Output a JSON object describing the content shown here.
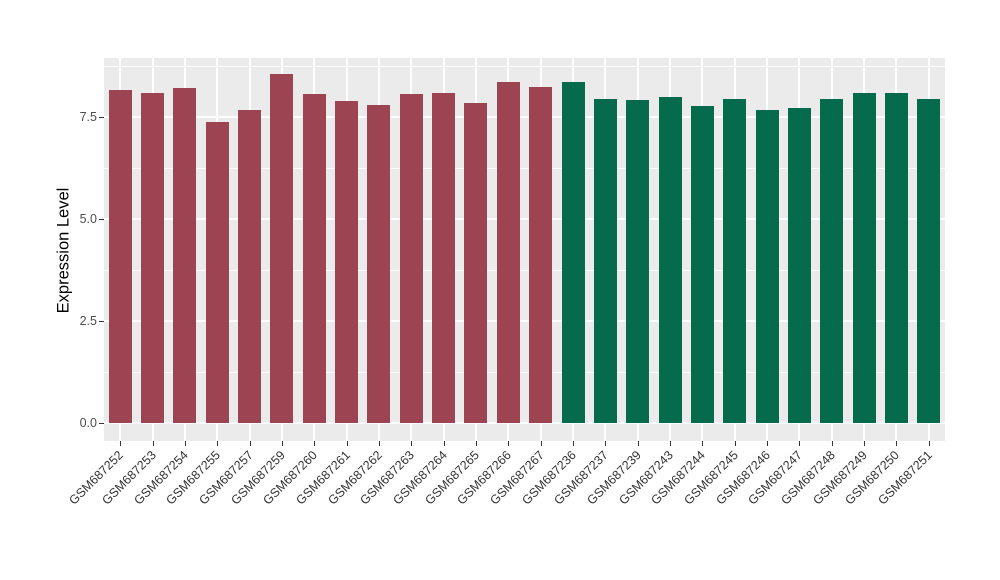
{
  "figure": {
    "background_color": "#FFFFFF",
    "panel_background_color": "#EBEBEB",
    "grid_color": "#FFFFFF"
  },
  "chart_data": {
    "type": "bar",
    "title": "",
    "xlabel": "",
    "ylabel": "Expression Level",
    "ylim": [
      -0.44,
      8.95
    ],
    "grid": true,
    "legend_position": "none",
    "ytick_labels": [
      "0.0",
      "2.5",
      "5.0",
      "7.5"
    ],
    "ytick_values": [
      0,
      2.5,
      5.0,
      7.5
    ],
    "yminor_values": [
      1.25,
      3.75,
      6.25,
      8.75
    ],
    "series": [
      {
        "name": "group-red",
        "color": "#9D4452",
        "points": [
          {
            "label": "GSM687252",
            "value": 8.15
          },
          {
            "label": "GSM687253",
            "value": 8.08
          },
          {
            "label": "GSM687254",
            "value": 8.2
          },
          {
            "label": "GSM687255",
            "value": 7.38
          },
          {
            "label": "GSM687257",
            "value": 7.67
          },
          {
            "label": "GSM687259",
            "value": 8.55
          },
          {
            "label": "GSM687260",
            "value": 8.06
          },
          {
            "label": "GSM687261",
            "value": 7.88
          },
          {
            "label": "GSM687262",
            "value": 7.8
          },
          {
            "label": "GSM687263",
            "value": 8.06
          },
          {
            "label": "GSM687264",
            "value": 8.1
          },
          {
            "label": "GSM687265",
            "value": 7.85
          },
          {
            "label": "GSM687266",
            "value": 8.35
          },
          {
            "label": "GSM687267",
            "value": 8.24
          }
        ]
      },
      {
        "name": "group-green",
        "color": "#066A4D",
        "points": [
          {
            "label": "GSM687236",
            "value": 8.36
          },
          {
            "label": "GSM687237",
            "value": 7.94
          },
          {
            "label": "GSM687239",
            "value": 7.92
          },
          {
            "label": "GSM687243",
            "value": 8.0
          },
          {
            "label": "GSM687244",
            "value": 7.76
          },
          {
            "label": "GSM687245",
            "value": 7.94
          },
          {
            "label": "GSM687246",
            "value": 7.67
          },
          {
            "label": "GSM687247",
            "value": 7.72
          },
          {
            "label": "GSM687248",
            "value": 7.94
          },
          {
            "label": "GSM687249",
            "value": 8.08
          },
          {
            "label": "GSM687250",
            "value": 8.1
          },
          {
            "label": "GSM687251",
            "value": 7.94
          }
        ]
      }
    ]
  }
}
